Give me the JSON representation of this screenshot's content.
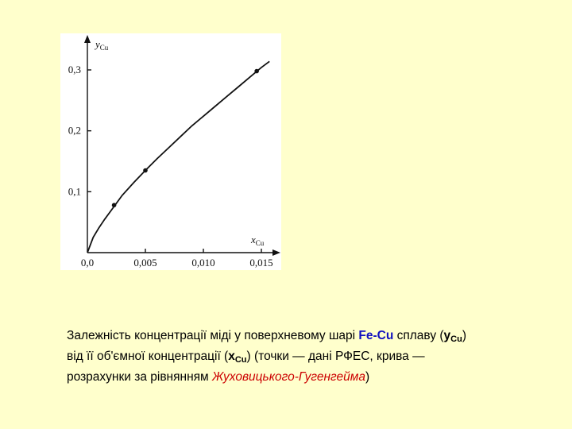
{
  "chart_data": {
    "type": "scatter",
    "ylabel_var": "y",
    "ylabel_sub": "Cu",
    "xlabel_var": "x",
    "xlabel_sub": "Cu",
    "xlim": [
      0,
      0.016
    ],
    "ylim": [
      0,
      0.34
    ],
    "x_ticks": [
      0,
      0.005,
      0.01,
      0.015
    ],
    "x_tick_labels": [
      "0,0",
      "0,005",
      "0,010",
      "0,015"
    ],
    "y_ticks": [
      0.1,
      0.2,
      0.3
    ],
    "y_tick_labels": [
      "0,1",
      "0,2",
      "0,3"
    ],
    "points": [
      {
        "x": 0.0023,
        "y": 0.078
      },
      {
        "x": 0.005,
        "y": 0.135
      },
      {
        "x": 0.0146,
        "y": 0.298
      }
    ],
    "curve": [
      {
        "x": 0.0,
        "y": 0.0
      },
      {
        "x": 0.0005,
        "y": 0.025
      },
      {
        "x": 0.001,
        "y": 0.041
      },
      {
        "x": 0.0015,
        "y": 0.055
      },
      {
        "x": 0.002,
        "y": 0.068
      },
      {
        "x": 0.003,
        "y": 0.094
      },
      {
        "x": 0.004,
        "y": 0.115
      },
      {
        "x": 0.005,
        "y": 0.135
      },
      {
        "x": 0.006,
        "y": 0.154
      },
      {
        "x": 0.007,
        "y": 0.172
      },
      {
        "x": 0.008,
        "y": 0.19
      },
      {
        "x": 0.009,
        "y": 0.208
      },
      {
        "x": 0.01,
        "y": 0.224
      },
      {
        "x": 0.011,
        "y": 0.24
      },
      {
        "x": 0.012,
        "y": 0.256
      },
      {
        "x": 0.013,
        "y": 0.272
      },
      {
        "x": 0.014,
        "y": 0.288
      },
      {
        "x": 0.015,
        "y": 0.304
      },
      {
        "x": 0.0157,
        "y": 0.314
      }
    ],
    "grid": false
  },
  "caption": {
    "t1": "Залежність концентрації міді у поверхневому шарі ",
    "alloy": "Fe-Cu",
    "t2": " сплаву (",
    "y_var": "y",
    "y_sub": "Cu",
    "t3": ")",
    "t4": "від її об'ємної концентрації (",
    "x_var": "x",
    "x_sub": "Cu",
    "t5": ") (точки — дані РФЕС, крива —",
    "t6": "розрахунки за рівнянням ",
    "eq_name": "Жуховицького-Гугенгейма",
    "t7": ")"
  },
  "colors": {
    "background": "#ffffcc",
    "alloy": "#1010c0",
    "eq_name": "#cc0000"
  }
}
